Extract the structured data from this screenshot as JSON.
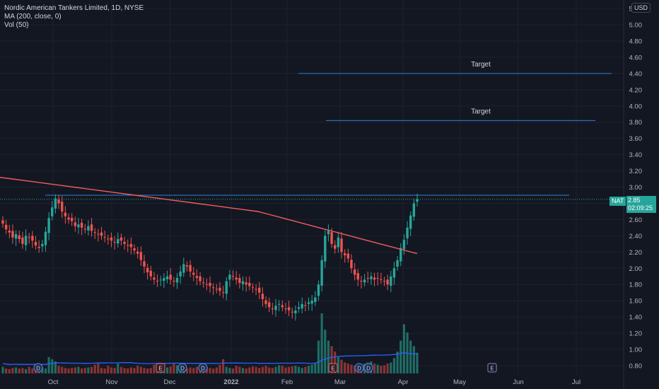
{
  "legend": {
    "title": "Nordic American Tankers Limited, 1D, NYSE",
    "ma": "MA (200, close, 0)",
    "vol": "Vol (50)"
  },
  "currency": "USD",
  "price_tag": {
    "symbol": "NAT",
    "price": "2.85",
    "countdown": "02:09:25"
  },
  "colors": {
    "background": "#131722",
    "grid": "#1e222d",
    "up": "#26a69a",
    "down": "#ef5350",
    "ma": "#f05d5e",
    "vol_ma": "#2962ff",
    "lines": "#2f7fd6"
  },
  "chart_data": {
    "type": "candlestick",
    "y_ticks": [
      "5.20",
      "5.00",
      "4.80",
      "4.60",
      "4.40",
      "4.20",
      "4.00",
      "3.80",
      "3.60",
      "3.40",
      "3.20",
      "3.00",
      "2.80",
      "2.60",
      "2.40",
      "2.20",
      "2.00",
      "1.80",
      "1.60",
      "1.40",
      "1.20",
      "1.00",
      "0.80"
    ],
    "ylim": [
      0.72,
      5.25
    ],
    "x_ticks": [
      "Oct",
      "Nov",
      "Dec",
      "2022",
      "Feb",
      "Mar",
      "Apr",
      "May",
      "Jun",
      "Jul"
    ],
    "horizontal_lines": [
      {
        "label": "Target",
        "value": 4.4
      },
      {
        "label": "Target",
        "value": 3.82
      },
      {
        "label": "",
        "value": 2.9
      }
    ],
    "last_price": 2.85,
    "markers": [
      {
        "type": "D",
        "date": "Sep"
      },
      {
        "type": "E",
        "date": "Nov"
      },
      {
        "type": "D",
        "date": "Dec"
      },
      {
        "type": "D",
        "date": "Dec"
      },
      {
        "type": "E",
        "date": "Feb"
      },
      {
        "type": "D",
        "date": "Mar"
      },
      {
        "type": "D",
        "date": "Mar"
      },
      {
        "type": "E",
        "date": "May"
      }
    ],
    "close_series": [
      2.55,
      2.48,
      2.44,
      2.38,
      2.42,
      2.36,
      2.3,
      2.4,
      2.38,
      2.34,
      2.28,
      2.25,
      2.3,
      2.45,
      2.62,
      2.75,
      2.86,
      2.8,
      2.7,
      2.64,
      2.6,
      2.58,
      2.52,
      2.54,
      2.5,
      2.48,
      2.52,
      2.46,
      2.44,
      2.42,
      2.4,
      2.38,
      2.36,
      2.34,
      2.32,
      2.36,
      2.34,
      2.3,
      2.28,
      2.26,
      2.22,
      2.18,
      2.1,
      2.02,
      1.95,
      1.9,
      1.86,
      1.84,
      1.86,
      1.88,
      1.9,
      1.86,
      1.84,
      1.88,
      1.96,
      2.05,
      2.02,
      1.96,
      1.92,
      1.88,
      1.84,
      1.82,
      1.8,
      1.78,
      1.76,
      1.74,
      1.72,
      1.7,
      1.84,
      1.92,
      1.9,
      1.86,
      1.82,
      1.84,
      1.8,
      1.78,
      1.76,
      1.74,
      1.7,
      1.62,
      1.56,
      1.52,
      1.5,
      1.54,
      1.56,
      1.52,
      1.5,
      1.48,
      1.46,
      1.48,
      1.52,
      1.56,
      1.54,
      1.58,
      1.6,
      1.64,
      1.8,
      2.1,
      2.4,
      2.46,
      2.3,
      2.24,
      2.38,
      2.2,
      2.16,
      2.12,
      2.0,
      1.92,
      1.86,
      1.84,
      1.86,
      1.88,
      1.9,
      1.86,
      1.88,
      1.86,
      1.84,
      1.8,
      1.9,
      2.0,
      2.1,
      2.25,
      2.35,
      2.5,
      2.65,
      2.8,
      2.85
    ],
    "ma200_series": [
      3.12,
      3.1,
      3.08,
      3.06,
      3.04,
      3.02,
      3.0,
      2.98,
      2.96,
      2.94,
      2.92,
      2.9,
      2.88,
      2.86,
      2.84,
      2.82,
      2.8,
      2.78,
      2.76,
      2.74,
      2.72,
      2.7,
      2.66,
      2.62,
      2.58,
      2.54,
      2.5,
      2.46,
      2.42,
      2.38,
      2.34,
      2.3,
      2.26,
      2.22,
      2.18
    ],
    "volume_series": [
      12,
      9,
      8,
      10,
      11,
      9,
      10,
      8,
      12,
      9,
      10,
      8,
      11,
      9,
      30,
      26,
      22,
      14,
      12,
      10,
      9,
      10,
      11,
      12,
      9,
      10,
      11,
      12,
      16,
      18,
      10,
      9,
      14,
      11,
      10,
      18,
      12,
      10,
      9,
      11,
      10,
      14,
      12,
      10,
      9,
      10,
      16,
      14,
      12,
      10,
      11,
      13,
      18,
      15,
      12,
      10,
      9,
      11,
      10,
      12,
      14,
      13,
      12,
      10,
      9,
      11,
      16,
      26,
      12,
      10,
      9,
      14,
      12,
      10,
      9,
      11,
      13,
      12,
      10,
      12,
      14,
      11,
      10,
      12,
      15,
      14,
      11,
      12,
      13,
      14,
      12,
      10,
      12,
      14,
      16,
      18,
      60,
      110,
      80,
      60,
      50,
      40,
      30,
      25,
      20,
      18,
      16,
      14,
      15,
      16,
      18,
      20,
      22,
      18,
      16,
      14,
      15,
      18,
      20,
      28,
      40,
      60,
      90,
      75,
      60,
      50,
      38
    ]
  }
}
